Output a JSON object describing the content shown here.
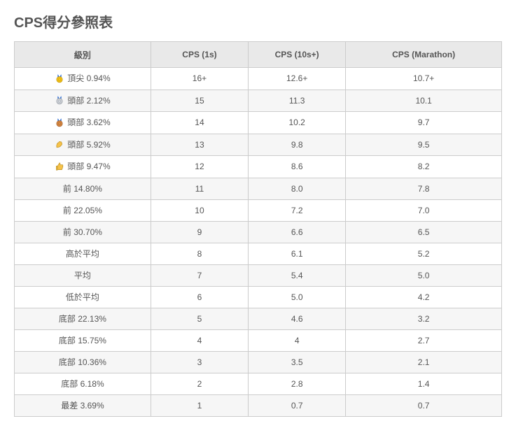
{
  "title": "CPS得分參照表",
  "columns": [
    "級別",
    "CPS (1s)",
    "CPS (10s+)",
    "CPS (Marathon)"
  ],
  "icons": {
    "gold-medal": {
      "ribbon": "#2b6cd4",
      "disc": "#f5c518",
      "ring": "#c99b10"
    },
    "silver-medal": {
      "ribbon": "#2b6cd4",
      "disc": "#d0d4da",
      "ring": "#9ea3aa"
    },
    "bronze-medal": {
      "ribbon": "#2b6cd4",
      "disc": "#d88b44",
      "ring": "#a8612a"
    },
    "flex-arm": {
      "fill": "#f6c24a",
      "stroke": "#b58a1f"
    },
    "thumbs-up": {
      "fill": "#f6c24a",
      "stroke": "#b58a1f"
    }
  },
  "rows": [
    {
      "icon": "gold-medal",
      "level": "頂尖 0.94%",
      "c1": "16+",
      "c10": "12.6+",
      "cmar": "10.7+"
    },
    {
      "icon": "silver-medal",
      "level": "頭部 2.12%",
      "c1": "15",
      "c10": "11.3",
      "cmar": "10.1"
    },
    {
      "icon": "bronze-medal",
      "level": "頭部 3.62%",
      "c1": "14",
      "c10": "10.2",
      "cmar": "9.7"
    },
    {
      "icon": "flex-arm",
      "level": "頭部 5.92%",
      "c1": "13",
      "c10": "9.8",
      "cmar": "9.5"
    },
    {
      "icon": "thumbs-up",
      "level": "頭部 9.47%",
      "c1": "12",
      "c10": "8.6",
      "cmar": "8.2"
    },
    {
      "icon": null,
      "level": "前 14.80%",
      "c1": "11",
      "c10": "8.0",
      "cmar": "7.8"
    },
    {
      "icon": null,
      "level": "前 22.05%",
      "c1": "10",
      "c10": "7.2",
      "cmar": "7.0"
    },
    {
      "icon": null,
      "level": "前 30.70%",
      "c1": "9",
      "c10": "6.6",
      "cmar": "6.5"
    },
    {
      "icon": null,
      "level": "高於平均",
      "c1": "8",
      "c10": "6.1",
      "cmar": "5.2"
    },
    {
      "icon": null,
      "level": "平均",
      "c1": "7",
      "c10": "5.4",
      "cmar": "5.0"
    },
    {
      "icon": null,
      "level": "低於平均",
      "c1": "6",
      "c10": "5.0",
      "cmar": "4.2"
    },
    {
      "icon": null,
      "level": "底部 22.13%",
      "c1": "5",
      "c10": "4.6",
      "cmar": "3.2"
    },
    {
      "icon": null,
      "level": "底部 15.75%",
      "c1": "4",
      "c10": "4",
      "cmar": "2.7"
    },
    {
      "icon": null,
      "level": "底部 10.36%",
      "c1": "3",
      "c10": "3.5",
      "cmar": "2.1"
    },
    {
      "icon": null,
      "level": "底部 6.18%",
      "c1": "2",
      "c10": "2.8",
      "cmar": "1.4"
    },
    {
      "icon": null,
      "level": "最差 3.69%",
      "c1": "1",
      "c10": "0.7",
      "cmar": "0.7"
    }
  ],
  "style": {
    "header_bg": "#e9e9e9",
    "border_color": "#cccccc",
    "row_alt_bg": "#f6f6f6",
    "text_color": "#555555",
    "title_color": "#555555",
    "font_size_header": 12,
    "font_size_cell": 12,
    "font_size_title": 20
  }
}
